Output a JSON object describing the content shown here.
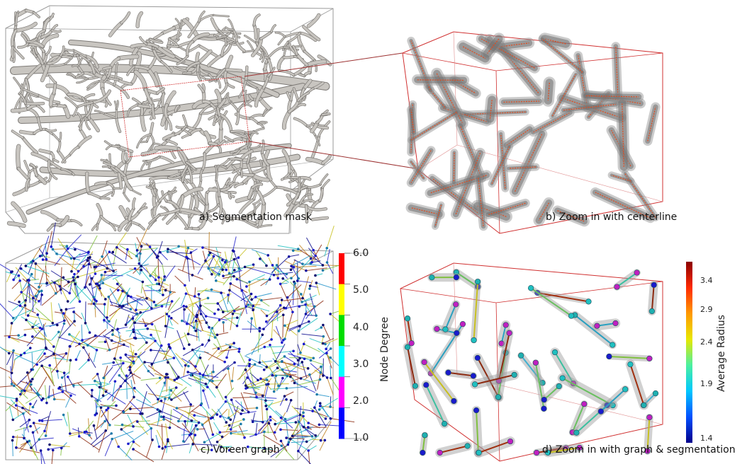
{
  "panels": {
    "a": {
      "caption": "a) Segmentation mask"
    },
    "b": {
      "caption": "b) Zoom in with centerline"
    },
    "c": {
      "caption": "c) Voreen graph"
    },
    "d": {
      "caption": "d) Zoom in with graph & segmentation"
    }
  },
  "node_degree_colorbar": {
    "label": "Node Degree",
    "ticks": [
      "6.0",
      "5.0",
      "4.0",
      "3.0",
      "2.0",
      "1.0"
    ],
    "colors": [
      "#ff0000",
      "#ffff00",
      "#00dd00",
      "#00ffff",
      "#ff00ff",
      "#0000ff"
    ]
  },
  "radius_colorbar": {
    "label": "Average Radius",
    "ticks": [
      "3.4",
      "2.9",
      "2.4",
      "1.9",
      "1.4"
    ],
    "gradient": [
      "#8b0000",
      "#ff2a00",
      "#ff9900",
      "#e8e800",
      "#4cf0a0",
      "#00c8ff",
      "#0050ff",
      "#00008b"
    ]
  },
  "colors": {
    "vessel_fill": "#c8c5c0",
    "vessel_stroke": "#7d7a76",
    "box_red": "#d03030",
    "box_gray": "#9a9a9a",
    "centerline": "#e34a1c"
  }
}
